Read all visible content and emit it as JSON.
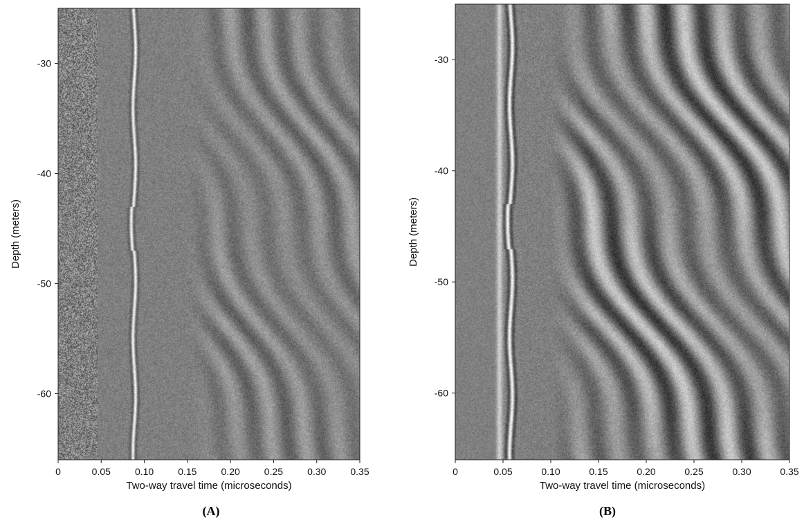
{
  "chart_data": [
    {
      "type": "heatmap",
      "panel_label": "(A)",
      "xlabel": "Two-way travel time (microseconds)",
      "ylabel": "Depth (meters)",
      "xlim": [
        0,
        0.35
      ],
      "ylim": [
        -66,
        -25
      ],
      "x_ticks": [
        0,
        0.05,
        0.1,
        0.15,
        0.2,
        0.25,
        0.3,
        0.35
      ],
      "x_tick_labels": [
        "0",
        "0.05",
        "0.10",
        "0.15",
        "0.20",
        "0.25",
        "0.30",
        "0.35"
      ],
      "y_ticks": [
        -30,
        -40,
        -50,
        -60
      ],
      "y_tick_labels": [
        "-30",
        "-40",
        "-50",
        "-60"
      ],
      "colormap": "grayscale",
      "primary_reflection_time": 0.088,
      "late_arrivals_start_time": 0.15
    },
    {
      "type": "heatmap",
      "panel_label": "(B)",
      "xlabel": "Two-way travel time (microseconds)",
      "ylabel": "Depth (meters)",
      "xlim": [
        0,
        0.35
      ],
      "ylim": [
        -66,
        -25
      ],
      "x_ticks": [
        0,
        0.05,
        0.1,
        0.15,
        0.2,
        0.25,
        0.3,
        0.35
      ],
      "x_tick_labels": [
        "0",
        "0.05",
        "0.10",
        "0.15",
        "0.20",
        "0.25",
        "0.30",
        "0.35"
      ],
      "y_ticks": [
        -30,
        -40,
        -50,
        -60
      ],
      "y_tick_labels": [
        "-30",
        "-40",
        "-50",
        "-60"
      ],
      "colormap": "grayscale",
      "primary_reflection_time": 0.058,
      "late_arrivals_start_time": 0.1
    }
  ]
}
